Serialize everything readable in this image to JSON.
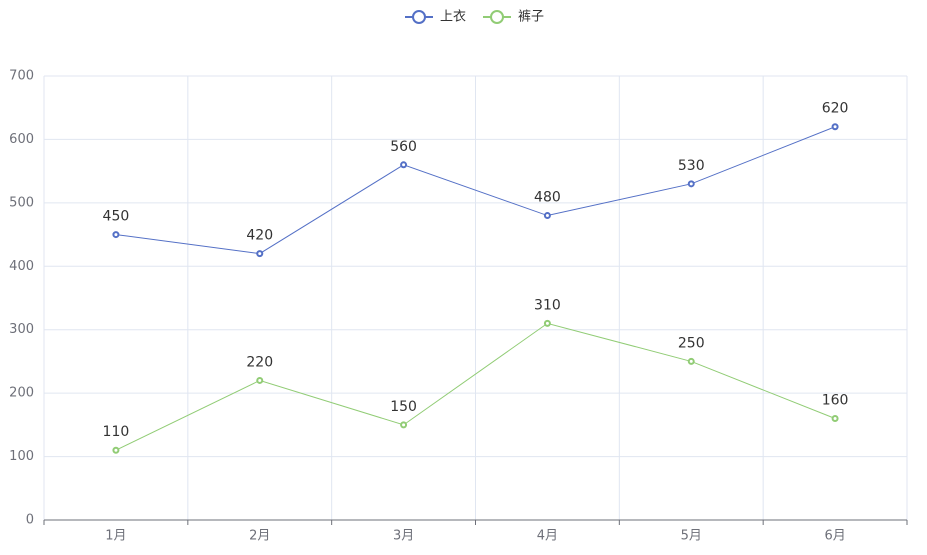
{
  "chart_data": {
    "type": "line",
    "categories": [
      "1月",
      "2月",
      "3月",
      "4月",
      "5月",
      "6月"
    ],
    "series": [
      {
        "name": "上衣",
        "color": "#5470c6",
        "values": [
          450,
          420,
          560,
          480,
          530,
          620
        ]
      },
      {
        "name": "裤子",
        "color": "#91cc75",
        "values": [
          110,
          220,
          150,
          310,
          250,
          160
        ]
      }
    ],
    "ylim": [
      0,
      700
    ],
    "yticks": [
      0,
      100,
      200,
      300,
      400,
      500,
      600,
      700
    ],
    "grid": true
  }
}
